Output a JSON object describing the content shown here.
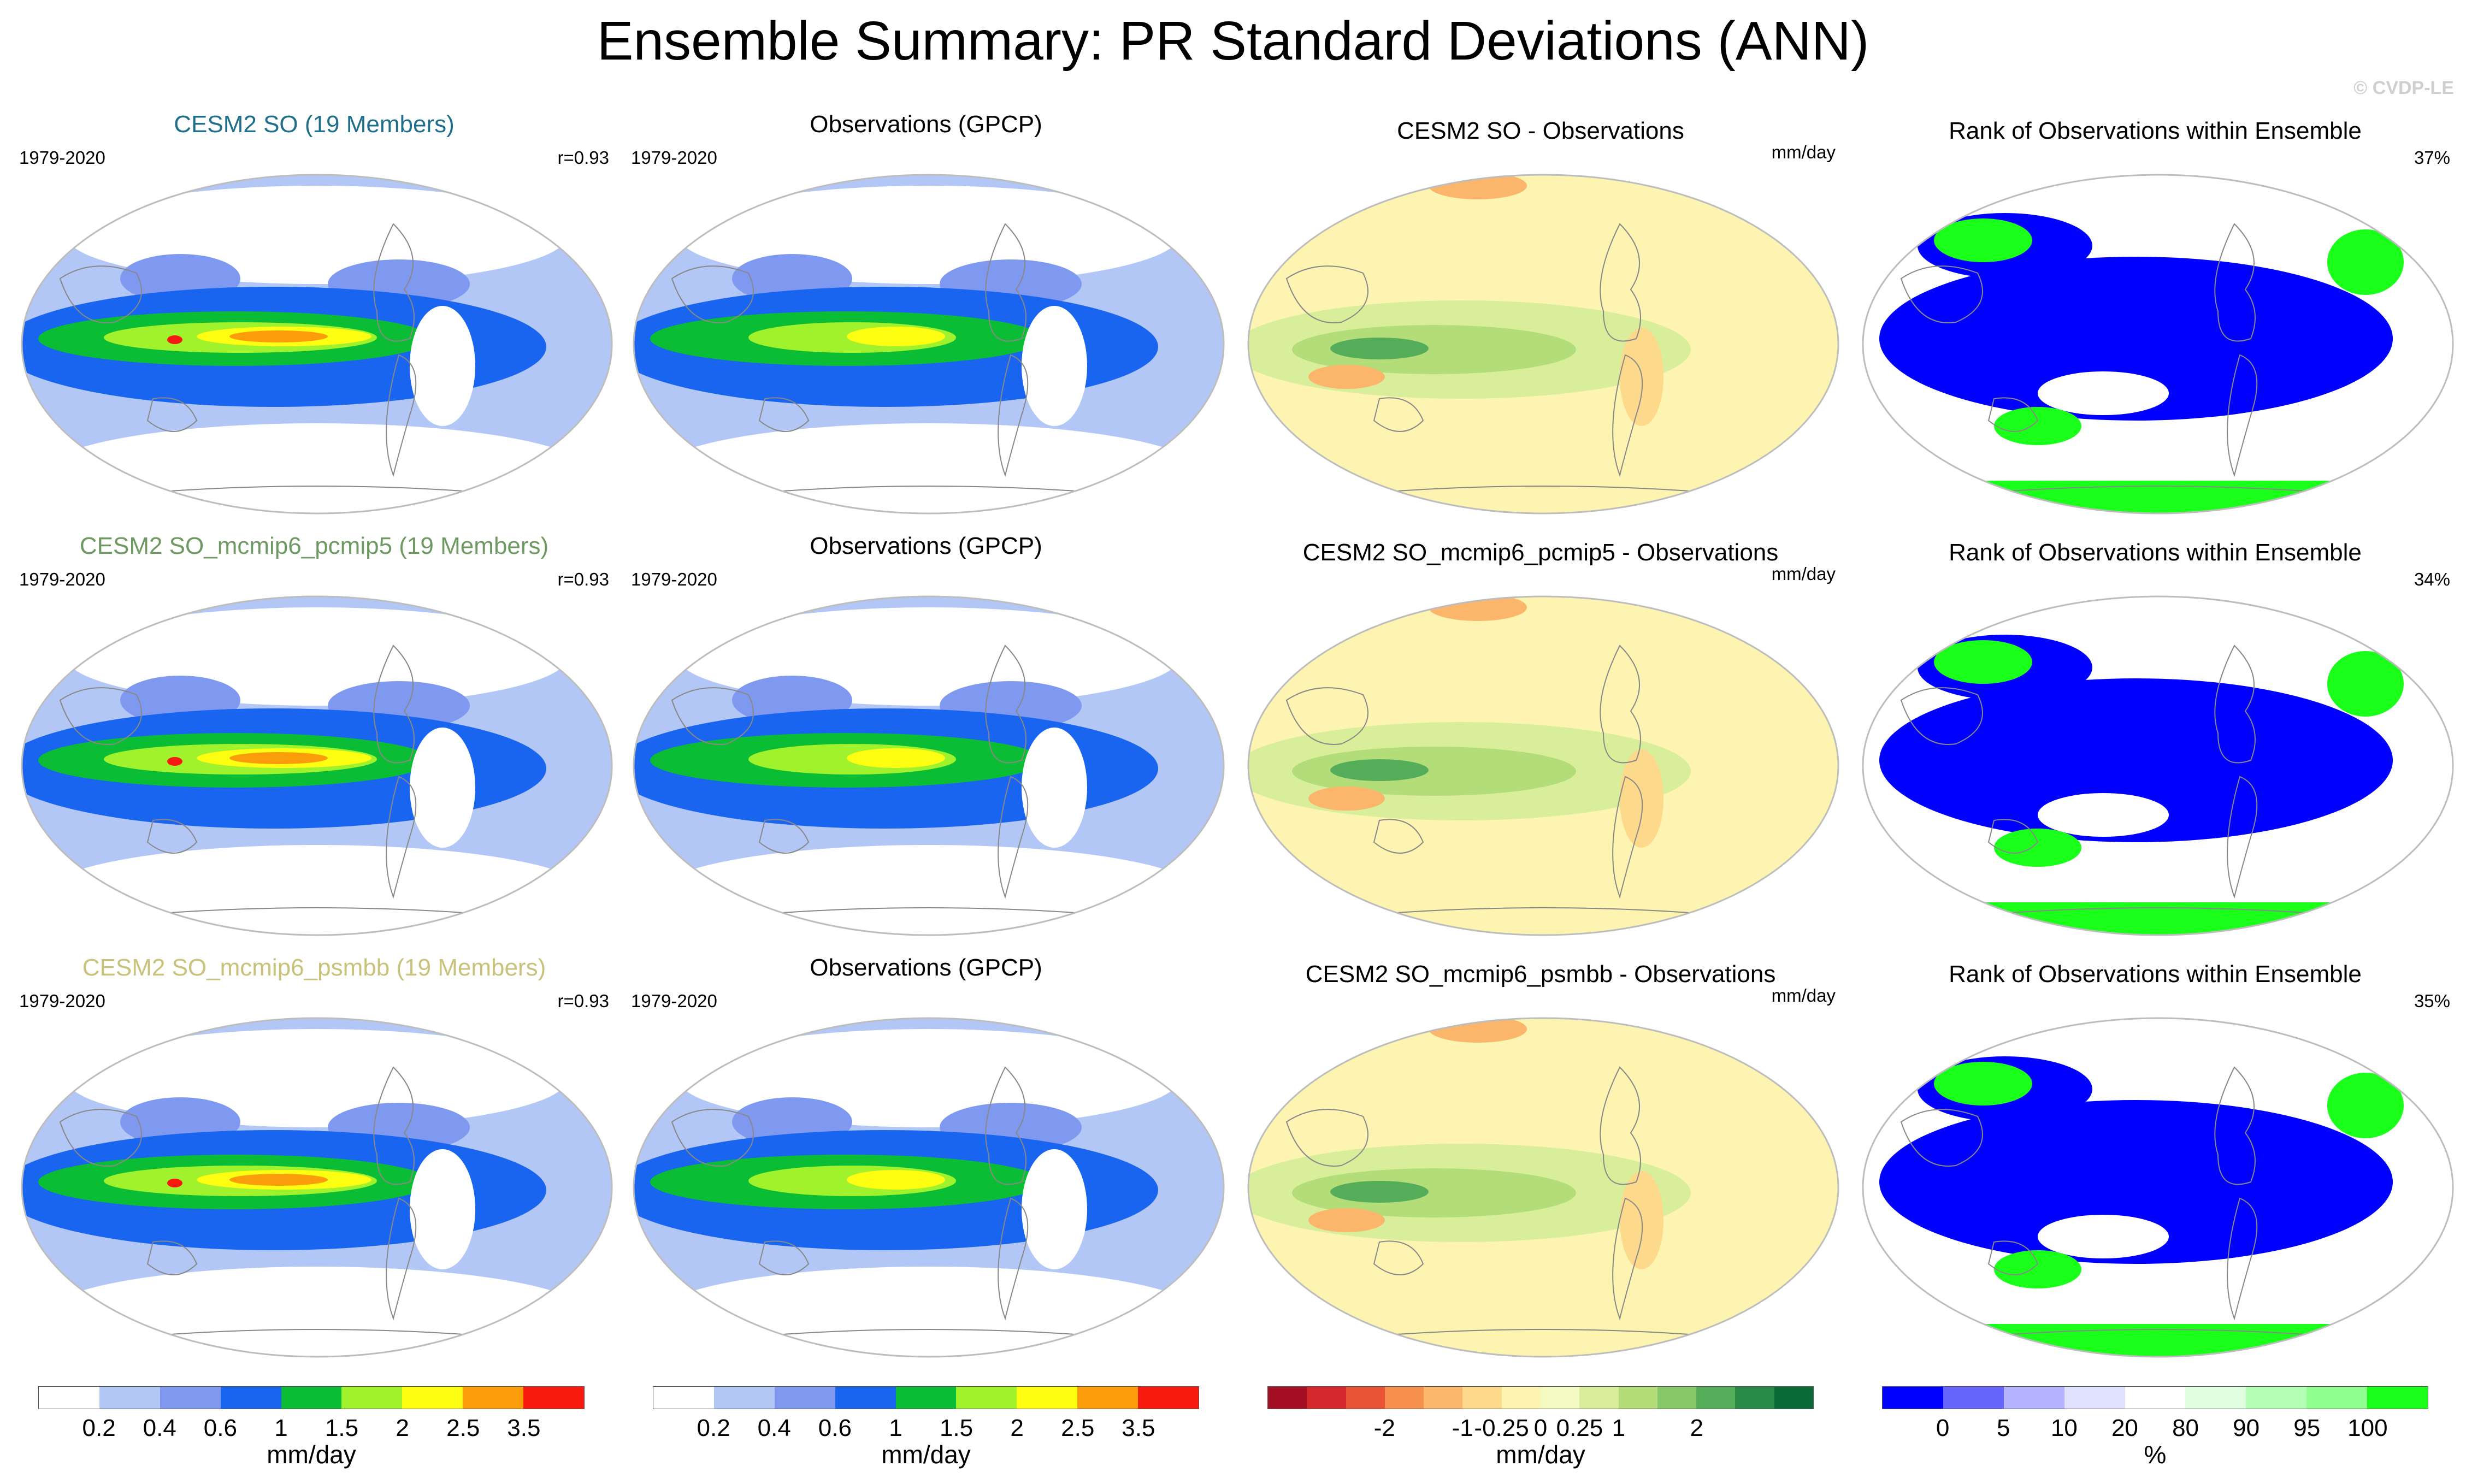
{
  "page_title": "Ensemble Summary: PR Standard Deviations (ANN)",
  "watermark": "© CVDP-LE",
  "colors": {
    "model_title_1": "#1f6e8c",
    "model_title_2": "#6e9a62",
    "model_title_3": "#c9c27a",
    "ocean_ellipse_border": "#bdbdbd"
  },
  "rows": [
    {
      "model": {
        "title": "CESM2 SO (19 Members)",
        "period": "1979-2020",
        "stat": "r=0.93"
      },
      "obs": {
        "title": "Observations (GPCP)",
        "period": "1979-2020"
      },
      "diff": {
        "title": "CESM2 SO - Observations",
        "units": "mm/day"
      },
      "rank": {
        "title": "Rank of Observations within Ensemble",
        "pct": "37%"
      }
    },
    {
      "model": {
        "title": "CESM2 SO_mcmip6_pcmip5 (19 Members)",
        "period": "1979-2020",
        "stat": "r=0.93"
      },
      "obs": {
        "title": "Observations (GPCP)",
        "period": "1979-2020"
      },
      "diff": {
        "title": "CESM2 SO_mcmip6_pcmip5 - Observations",
        "units": "mm/day"
      },
      "rank": {
        "title": "Rank of Observations within Ensemble",
        "pct": "34%"
      }
    },
    {
      "model": {
        "title": "CESM2 SO_mcmip6_psmbb (19 Members)",
        "period": "1979-2020",
        "stat": "r=0.93"
      },
      "obs": {
        "title": "Observations (GPCP)",
        "period": "1979-2020"
      },
      "diff": {
        "title": "CESM2 SO_mcmip6_psmbb - Observations",
        "units": "mm/day"
      },
      "rank": {
        "title": "Rank of Observations within Ensemble",
        "pct": "35%"
      }
    }
  ],
  "colorbars": [
    {
      "name": "std-colorbar-model",
      "colors": [
        "#ffffff",
        "#b3c7f7",
        "#7f99f1",
        "#1965f0",
        "#0bbd34",
        "#a0f22c",
        "#fefe12",
        "#fb9d0b",
        "#f8190e"
      ],
      "ticks": [
        "0.2",
        "0.4",
        "0.6",
        "1",
        "1.5",
        "2",
        "2.5",
        "3.5"
      ],
      "units": "mm/day"
    },
    {
      "name": "std-colorbar-obs",
      "colors": [
        "#ffffff",
        "#b3c7f7",
        "#7f99f1",
        "#1965f0",
        "#0bbd34",
        "#a0f22c",
        "#fefe12",
        "#fb9d0b",
        "#f8190e"
      ],
      "ticks": [
        "0.2",
        "0.4",
        "0.6",
        "1",
        "1.5",
        "2",
        "2.5",
        "3.5"
      ],
      "units": "mm/day"
    },
    {
      "name": "diff-colorbar",
      "colors": [
        "#a50f25",
        "#d42a2d",
        "#e85336",
        "#f7904f",
        "#fbb66c",
        "#fdd98c",
        "#fdf4b1",
        "#f5fac2",
        "#d9ee9a",
        "#b2dd79",
        "#86c86a",
        "#55ad5a",
        "#2a8b48",
        "#0a6936"
      ],
      "ticks": [
        "-2",
        "-1",
        "-0.25",
        "0",
        "0.25",
        "1",
        "2"
      ],
      "tick_positions": [
        3,
        5,
        6,
        7,
        8,
        9,
        11
      ],
      "units": "mm/day"
    },
    {
      "name": "rank-colorbar",
      "colors": [
        "#0000ff",
        "#6666ff",
        "#b3b3ff",
        "#e0e0ff",
        "#ffffff",
        "#e0ffe0",
        "#b3ffb3",
        "#8fff8f",
        "#1aff1a"
      ],
      "ticks": [
        "0",
        "5",
        "10",
        "20",
        "80",
        "90",
        "95",
        "100"
      ],
      "units": "%"
    }
  ],
  "chart_data": [
    {
      "type": "heatmap",
      "title": "CESM2 SO (19 Members)",
      "variable": "PR standard deviation",
      "period": "1979-2020",
      "pattern_correlation": 0.93,
      "units": "mm/day",
      "levels": [
        0.2,
        0.4,
        0.6,
        1,
        1.5,
        2,
        2.5,
        3.5
      ]
    },
    {
      "type": "heatmap",
      "title": "Observations (GPCP)",
      "period": "1979-2020",
      "units": "mm/day",
      "levels": [
        0.2,
        0.4,
        0.6,
        1,
        1.5,
        2,
        2.5,
        3.5
      ]
    },
    {
      "type": "heatmap",
      "title": "CESM2 SO - Observations",
      "units": "mm/day",
      "levels": [
        -2,
        -1,
        -0.25,
        0,
        0.25,
        1,
        2
      ]
    },
    {
      "type": "heatmap",
      "title": "Rank of Observations within Ensemble",
      "units": "%",
      "levels": [
        0,
        5,
        10,
        20,
        80,
        90,
        95,
        100
      ],
      "area_pct": [
        37,
        34,
        35
      ]
    },
    {
      "type": "heatmap",
      "title": "CESM2 SO_mcmip6_pcmip5 (19 Members)",
      "period": "1979-2020",
      "pattern_correlation": 0.93
    },
    {
      "type": "heatmap",
      "title": "CESM2 SO_mcmip6_psmbb (19 Members)",
      "period": "1979-2020",
      "pattern_correlation": 0.93
    }
  ]
}
